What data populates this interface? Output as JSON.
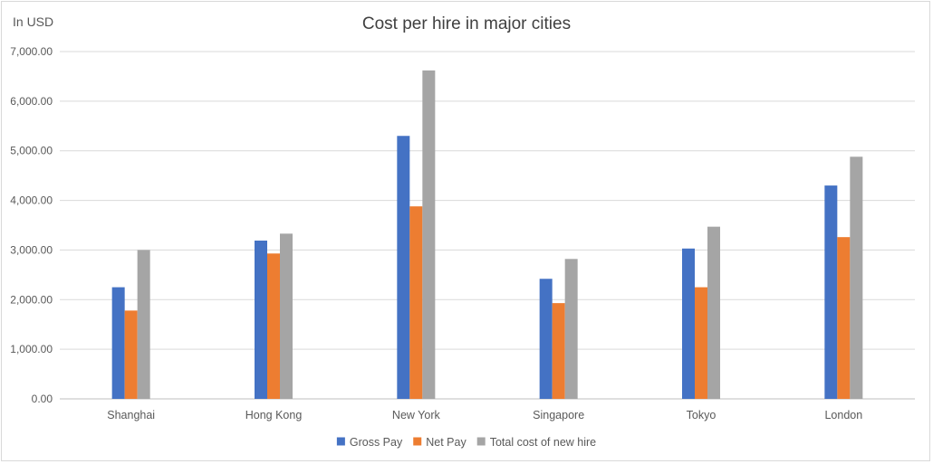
{
  "chart_data": {
    "type": "bar",
    "title": "Cost per hire in major cities",
    "ylabel": "In USD",
    "xlabel": "",
    "categories": [
      "Shanghai",
      "Hong Kong",
      "New York",
      "Singapore",
      "Tokyo",
      "London"
    ],
    "series": [
      {
        "name": "Gross Pay",
        "color": "#4472c4",
        "values": [
          2250,
          3190,
          5300,
          2420,
          3030,
          4300
        ]
      },
      {
        "name": "Net Pay",
        "color": "#ed7d31",
        "values": [
          1780,
          2930,
          3880,
          1930,
          2250,
          3260
        ]
      },
      {
        "name": "Total cost of new hire",
        "color": "#a5a5a5",
        "values": [
          3000,
          3330,
          6620,
          2820,
          3470,
          4880
        ]
      }
    ],
    "ylim": [
      0,
      7000
    ],
    "yticks": [
      "0.00",
      "1,000.00",
      "2,000.00",
      "3,000.00",
      "4,000.00",
      "5,000.00",
      "6,000.00",
      "7,000.00"
    ],
    "grid": true,
    "legend_position": "bottom"
  }
}
